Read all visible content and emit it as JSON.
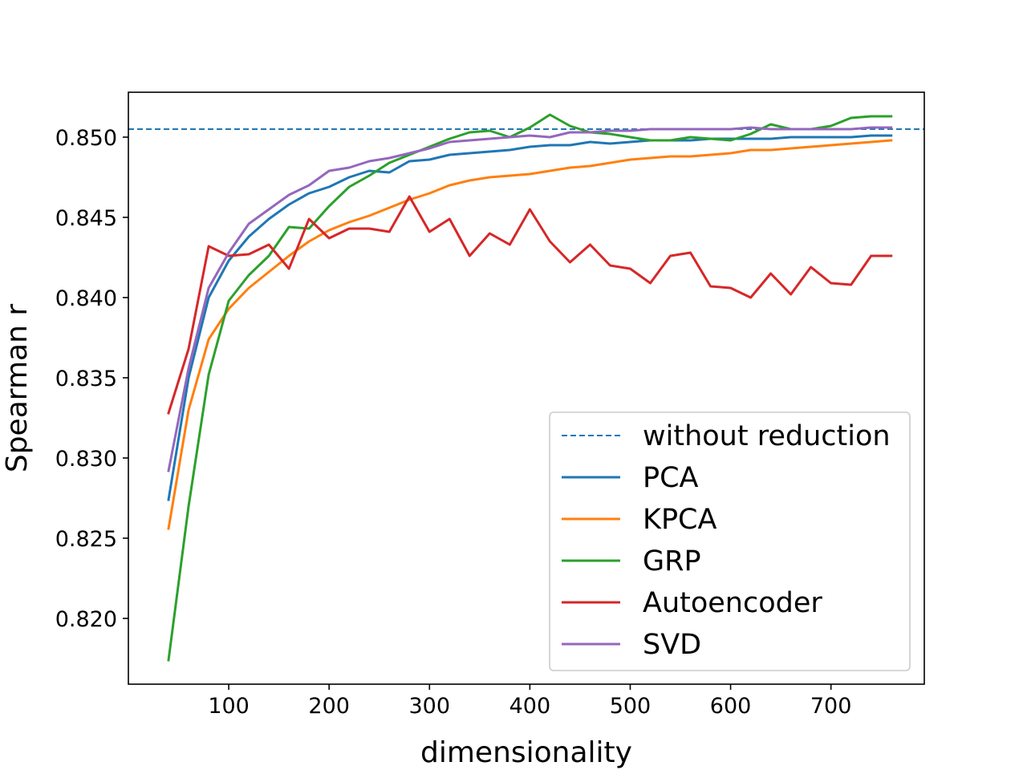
{
  "chart_data": {
    "type": "line",
    "title": "",
    "xlabel": "dimensionality",
    "ylabel": "Spearman r",
    "xlim": [
      0,
      793
    ],
    "ylim": [
      0.8159,
      0.8528
    ],
    "x_ticks": [
      100,
      200,
      300,
      400,
      500,
      600,
      700
    ],
    "x_tick_labels": [
      "100",
      "200",
      "300",
      "400",
      "500",
      "600",
      "700"
    ],
    "y_ticks": [
      0.82,
      0.825,
      0.83,
      0.835,
      0.84,
      0.845,
      0.85
    ],
    "y_tick_labels": [
      "0.820",
      "0.825",
      "0.830",
      "0.835",
      "0.840",
      "0.845",
      "0.850"
    ],
    "grid": false,
    "legend_position": "lower-right",
    "baseline": {
      "name": "without reduction",
      "value": 0.8505,
      "color": "#1f77b4",
      "style": "dashed"
    },
    "x": [
      40,
      60,
      80,
      100,
      120,
      140,
      160,
      180,
      200,
      220,
      240,
      260,
      280,
      300,
      320,
      340,
      360,
      380,
      400,
      420,
      440,
      460,
      480,
      500,
      520,
      540,
      560,
      580,
      600,
      620,
      640,
      660,
      680,
      700,
      720,
      740,
      760
    ],
    "series": [
      {
        "name": "PCA",
        "color": "#1f77b4",
        "values": [
          0.8274,
          0.835,
          0.84,
          0.8423,
          0.8438,
          0.8449,
          0.8458,
          0.8465,
          0.8469,
          0.8475,
          0.8479,
          0.8478,
          0.8485,
          0.8486,
          0.8489,
          0.849,
          0.8491,
          0.8492,
          0.8494,
          0.8495,
          0.8495,
          0.8497,
          0.8496,
          0.8497,
          0.8498,
          0.8498,
          0.8498,
          0.8499,
          0.8499,
          0.8499,
          0.8499,
          0.85,
          0.85,
          0.85,
          0.85,
          0.8501,
          0.8501
        ]
      },
      {
        "name": "KPCA",
        "color": "#ff7f0e",
        "values": [
          0.8256,
          0.833,
          0.8374,
          0.8393,
          0.8406,
          0.8416,
          0.8426,
          0.8435,
          0.8442,
          0.8447,
          0.8451,
          0.8456,
          0.8461,
          0.8465,
          0.847,
          0.8473,
          0.8475,
          0.8476,
          0.8477,
          0.8479,
          0.8481,
          0.8482,
          0.8484,
          0.8486,
          0.8487,
          0.8488,
          0.8488,
          0.8489,
          0.849,
          0.8492,
          0.8492,
          0.8493,
          0.8494,
          0.8495,
          0.8496,
          0.8497,
          0.8498
        ]
      },
      {
        "name": "GRP",
        "color": "#2ca02c",
        "values": [
          0.8174,
          0.827,
          0.8352,
          0.8398,
          0.8414,
          0.8426,
          0.8444,
          0.8443,
          0.8457,
          0.8469,
          0.8476,
          0.8484,
          0.8489,
          0.8494,
          0.8499,
          0.8503,
          0.8504,
          0.85,
          0.8506,
          0.8514,
          0.8507,
          0.8503,
          0.8502,
          0.85,
          0.8498,
          0.8498,
          0.85,
          0.8499,
          0.8498,
          0.8502,
          0.8508,
          0.8505,
          0.8505,
          0.8507,
          0.8512,
          0.8513,
          0.8513
        ]
      },
      {
        "name": "Autoencoder",
        "color": "#d62728",
        "values": [
          0.8328,
          0.8368,
          0.8432,
          0.8426,
          0.8427,
          0.8433,
          0.8418,
          0.8449,
          0.8437,
          0.8443,
          0.8443,
          0.8441,
          0.8463,
          0.8441,
          0.8449,
          0.8426,
          0.844,
          0.8433,
          0.8455,
          0.8435,
          0.8422,
          0.8433,
          0.842,
          0.8418,
          0.8409,
          0.8426,
          0.8428,
          0.8407,
          0.8406,
          0.84,
          0.8415,
          0.8402,
          0.8419,
          0.8409,
          0.8408,
          0.8426,
          0.8426
        ]
      },
      {
        "name": "SVD",
        "color": "#9467bd",
        "values": [
          0.8292,
          0.8356,
          0.8406,
          0.8428,
          0.8446,
          0.8455,
          0.8464,
          0.847,
          0.8479,
          0.8481,
          0.8485,
          0.8487,
          0.849,
          0.8493,
          0.8497,
          0.8498,
          0.8499,
          0.85,
          0.8501,
          0.85,
          0.8503,
          0.8503,
          0.8504,
          0.8504,
          0.8505,
          0.8505,
          0.8505,
          0.8505,
          0.8505,
          0.8506,
          0.8505,
          0.8505,
          0.8505,
          0.8505,
          0.8505,
          0.8506,
          0.8506
        ]
      }
    ]
  }
}
